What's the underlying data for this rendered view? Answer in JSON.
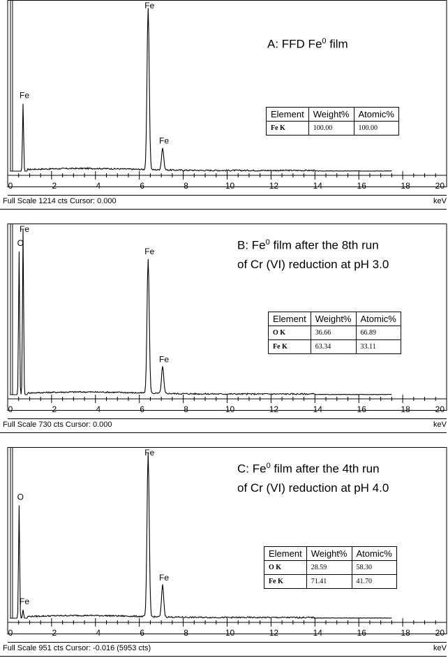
{
  "chart_data": [
    {
      "type": "line",
      "title": "A: FFD Fe⁰ film",
      "title_main": "A: FFD Fe",
      "title_sup": "0",
      "title_rest": " film",
      "title_line2": "",
      "xlabel": "keV",
      "xlim": [
        0,
        20
      ],
      "x_ticks": [
        0,
        2,
        4,
        6,
        8,
        10,
        12,
        14,
        16,
        18,
        20
      ],
      "full_scale_cts": 1214,
      "footer": "Full Scale 1214 cts Cursor: 0.000",
      "peaks": [
        {
          "label": "Fe",
          "x": 0.7,
          "height": 0.4
        },
        {
          "label": "Fe",
          "x": 6.4,
          "height": 0.96
        },
        {
          "label": "Fe",
          "x": 7.06,
          "height": 0.13
        }
      ],
      "table": {
        "headers": [
          "Element",
          "Weight%",
          "Atomic%"
        ],
        "rows": [
          [
            "Fe K",
            "100.00",
            "100.00"
          ]
        ]
      }
    },
    {
      "type": "line",
      "title": "B: Fe⁰ film after the 8th run of Cr (VI) reduction at pH 3.0",
      "title_main": "B: Fe",
      "title_sup": "0",
      "title_rest": " film after the 8th run",
      "title_line2": "of Cr (VI) reduction at pH 3.0",
      "xlabel": "keV",
      "xlim": [
        0,
        20
      ],
      "x_ticks": [
        0,
        2,
        4,
        6,
        8,
        10,
        12,
        14,
        16,
        18,
        20
      ],
      "full_scale_cts": 730,
      "footer": "Full Scale 730 cts Cursor: 0.000",
      "peaks": [
        {
          "label": "O",
          "x": 0.52,
          "height": 0.85
        },
        {
          "label": "Fe",
          "x": 0.7,
          "height": 0.98
        },
        {
          "label": "Fe",
          "x": 6.4,
          "height": 0.8
        },
        {
          "label": "Fe",
          "x": 7.06,
          "height": 0.16
        }
      ],
      "table": {
        "headers": [
          "Element",
          "Weight%",
          "Atomic%"
        ],
        "rows": [
          [
            "O K",
            "36.66",
            "66.89"
          ],
          [
            "Fe K",
            "63.34",
            "33.11"
          ]
        ]
      }
    },
    {
      "type": "line",
      "title": "C: Fe⁰ film after the 4th run of Cr (VI) reduction at pH 4.0",
      "title_main": "C: Fe",
      "title_sup": "0",
      "title_rest": " film after the 4th run",
      "title_line2": "of Cr (VI) reduction at pH 4.0",
      "xlabel": "keV",
      "xlim": [
        0,
        20
      ],
      "x_ticks": [
        0,
        2,
        4,
        6,
        8,
        10,
        12,
        14,
        16,
        18,
        20
      ],
      "full_scale_cts": 951,
      "footer": "Full Scale 951 cts Cursor: -0.016  (5953 cts)",
      "peaks": [
        {
          "label": "O",
          "x": 0.52,
          "height": 0.67
        },
        {
          "label": "Fe",
          "x": 0.7,
          "height": 0.05
        },
        {
          "label": "Fe",
          "x": 6.4,
          "height": 0.97
        },
        {
          "label": "Fe",
          "x": 7.06,
          "height": 0.19
        }
      ],
      "table": {
        "headers": [
          "Element",
          "Weight%",
          "Atomic%"
        ],
        "rows": [
          [
            "O K",
            "28.59",
            "58.30"
          ],
          [
            "Fe K",
            "71.41",
            "41.70"
          ]
        ]
      }
    }
  ]
}
